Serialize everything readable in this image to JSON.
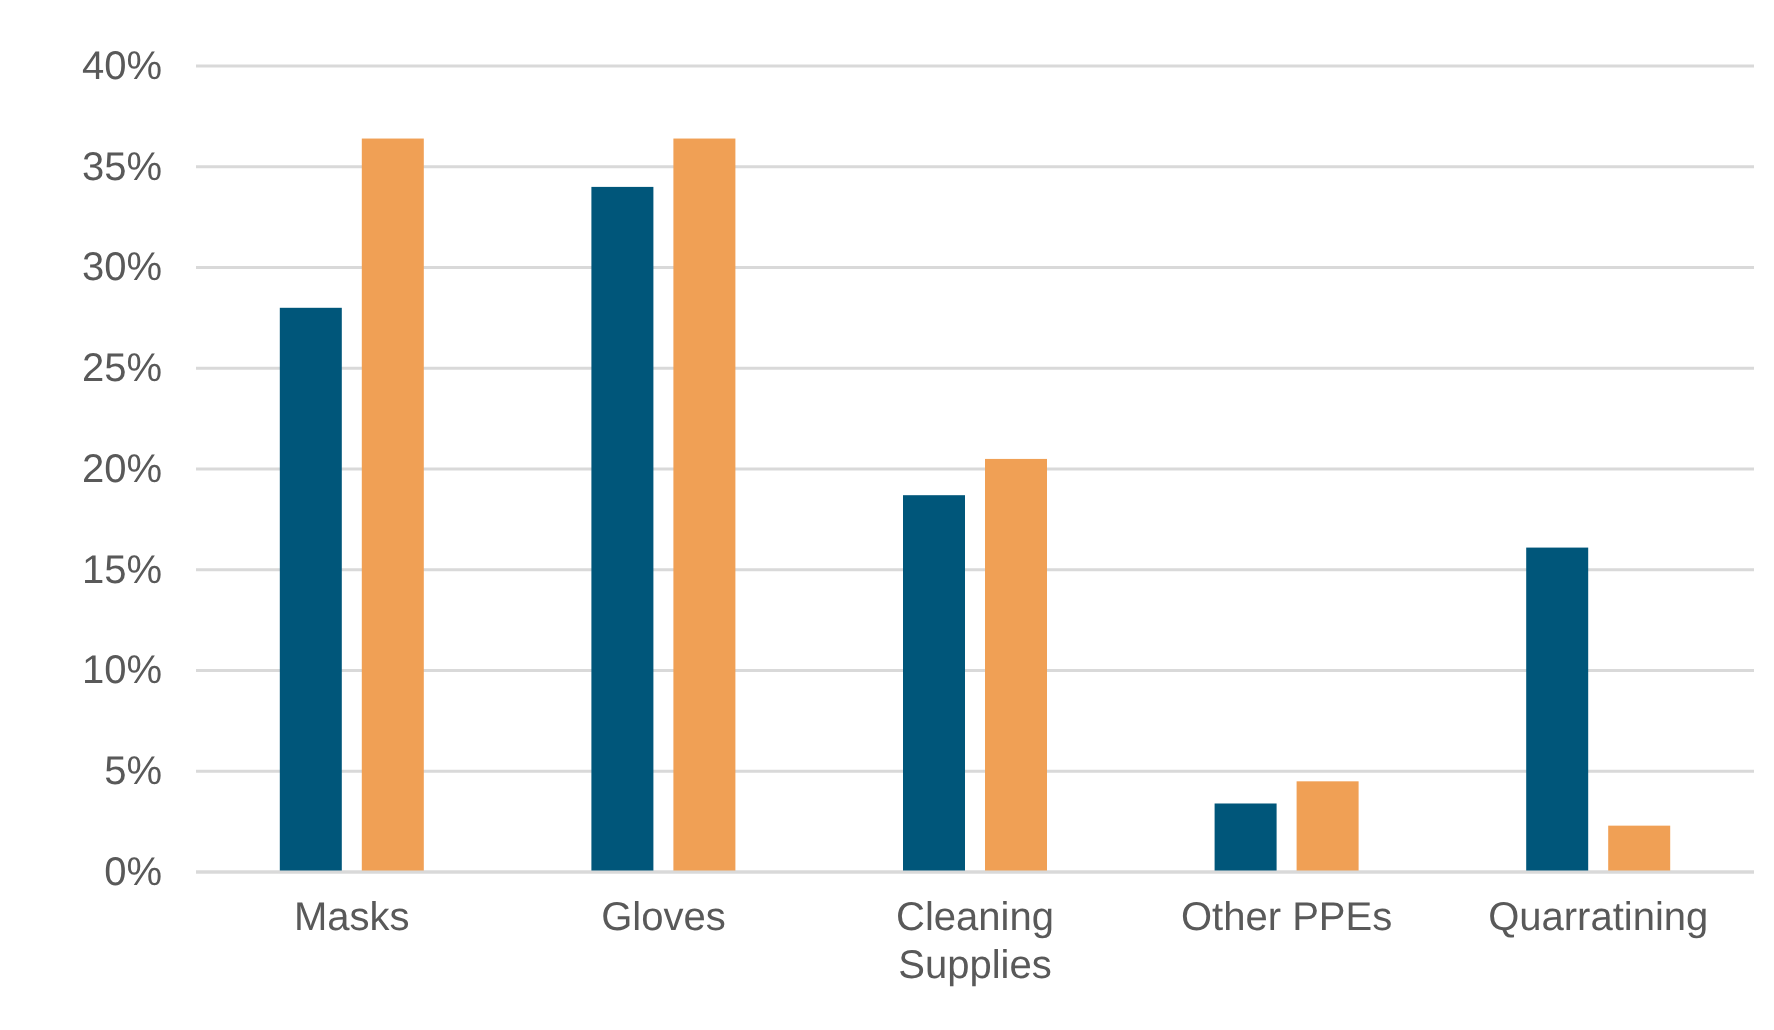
{
  "chart_data": {
    "type": "bar",
    "categories": [
      "Masks",
      "Gloves",
      "Cleaning Supplies",
      "Other PPEs",
      "Quarratining"
    ],
    "series": [
      {
        "color": "#00567a",
        "values": [
          28,
          34,
          18.7,
          3.4,
          16.1
        ]
      },
      {
        "color": "#f0a055",
        "values": [
          36.4,
          36.4,
          20.5,
          4.5,
          2.3
        ]
      }
    ],
    "ylim": [
      0,
      40
    ],
    "yticks": [
      {
        "value": 0,
        "label": "0%"
      },
      {
        "value": 5,
        "label": "5%"
      },
      {
        "value": 10,
        "label": "10%"
      },
      {
        "value": 15,
        "label": "15%"
      },
      {
        "value": 20,
        "label": "20%"
      },
      {
        "value": 25,
        "label": "25%"
      },
      {
        "value": 30,
        "label": "30%"
      },
      {
        "value": 35,
        "label": "35%"
      },
      {
        "value": 40,
        "label": "40%"
      }
    ],
    "grid": "y"
  }
}
